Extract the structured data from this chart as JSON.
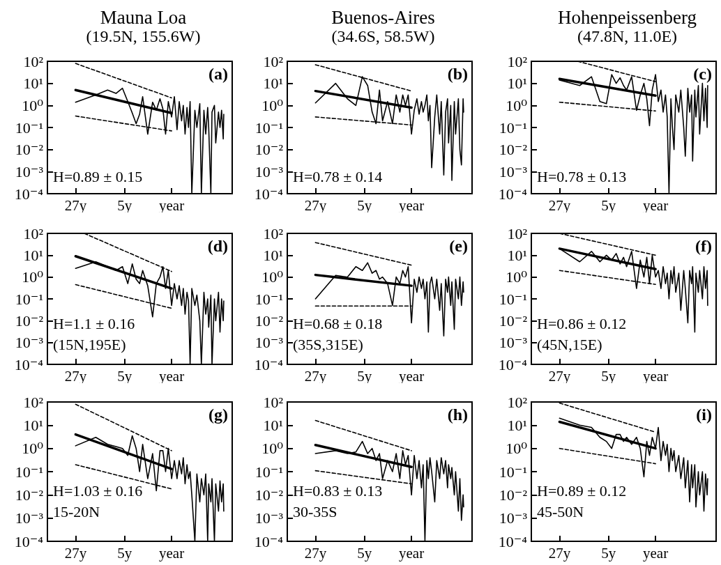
{
  "chart_data": [
    {
      "type": "line",
      "title": "Mauna Loa",
      "subtitle": "(19.5N, 155.6W)",
      "annotations": [
        "(a)",
        "H=0.89 ± 0.15"
      ],
      "log": "xy",
      "marker": "none",
      "xlim": [
        71,
        0.125
      ],
      "ylim": [
        0.0001,
        100
      ],
      "xticks": [
        {
          "value": 27,
          "label": "27y"
        },
        {
          "value": 5,
          "label": "5y"
        },
        {
          "value": 1,
          "label": "year"
        }
      ],
      "yticks": [
        {
          "value": 100,
          "label": "10²"
        },
        {
          "value": 10,
          "label": "10¹"
        },
        {
          "value": 1,
          "label": "10⁰"
        },
        {
          "value": 0.1,
          "label": "10⁻¹"
        },
        {
          "value": 0.01,
          "label": "10⁻²"
        },
        {
          "value": 0.001,
          "label": "10⁻³"
        },
        {
          "value": 0.0001,
          "label": "10⁻⁴"
        }
      ],
      "x": [
        27,
        13.5,
        9,
        6.75,
        5.4,
        4.5,
        3.86,
        3.38,
        3,
        2.7,
        2.27,
        1.92,
        1.69,
        1.49,
        1.35,
        1.23,
        1.12,
        1,
        0.91,
        0.83,
        0.77,
        0.71,
        0.67,
        0.63,
        0.59,
        0.56,
        0.53,
        0.5,
        0.45,
        0.42,
        0.38,
        0.36,
        0.33,
        0.31,
        0.29,
        0.28,
        0.26,
        0.25,
        0.23,
        0.22,
        0.2,
        0.19,
        0.18,
        0.17,
        0.167
      ],
      "series": [
        {
          "color": "#000000",
          "values": [
            1.4,
            3,
            5,
            3.5,
            6,
            1.5,
            0.45,
            0.15,
            0.4,
            2.5,
            0.05,
            1.4,
            0.6,
            2,
            0.7,
            0.05,
            1.5,
            0.3,
            2.5,
            0.08,
            1.5,
            0.2,
            1,
            0.05,
            0.8,
            0.1,
            1.5,
            0.0001,
            0.6,
            0.1,
            1.2,
            0.0001,
            0.6,
            0.05,
            0.8,
            0.1,
            0.0001,
            0.5,
            1,
            0.02,
            0.5,
            0.1,
            0.6,
            0.03,
            0.4
          ]
        },
        {
          "color": "#000000",
          "x": [
            27,
            1
          ],
          "values": [
            5,
            0.45
          ]
        },
        {
          "color": "#000000",
          "x": [
            27,
            1
          ],
          "values": [
            80,
            2.2
          ],
          "line_style": "dashed"
        },
        {
          "color": "#000000",
          "x": [
            27,
            1
          ],
          "values": [
            0.33,
            0.07
          ],
          "line_style": "dashed"
        }
      ]
    },
    {
      "type": "line",
      "title": "Buenos-Aires",
      "subtitle": "(34.6S, 58.5W)",
      "annotations": [
        "(b)",
        "H=0.78 ± 0.14"
      ],
      "log": "xy",
      "marker": "none",
      "xlim": [
        71,
        0.125
      ],
      "ylim": [
        0.0001,
        100
      ],
      "xticks": [
        {
          "value": 27,
          "label": "27y"
        },
        {
          "value": 5,
          "label": "5y"
        },
        {
          "value": 1,
          "label": "year"
        }
      ],
      "yticks": [
        {
          "value": 100,
          "label": "10²"
        },
        {
          "value": 10,
          "label": "10¹"
        },
        {
          "value": 1,
          "label": "10⁰"
        },
        {
          "value": 0.1,
          "label": "10⁻¹"
        },
        {
          "value": 0.01,
          "label": "10⁻²"
        },
        {
          "value": 0.001,
          "label": "10⁻³"
        },
        {
          "value": 0.0001,
          "label": "10⁻⁴"
        }
      ],
      "x": [
        27,
        13.5,
        9,
        6.75,
        5.4,
        4.5,
        3.86,
        3.38,
        3,
        2.7,
        2.27,
        1.92,
        1.69,
        1.49,
        1.35,
        1.23,
        1.12,
        1,
        0.91,
        0.83,
        0.77,
        0.71,
        0.67,
        0.63,
        0.59,
        0.56,
        0.53,
        0.5,
        0.45,
        0.42,
        0.38,
        0.36,
        0.33,
        0.31,
        0.29,
        0.28,
        0.26,
        0.25,
        0.23,
        0.22,
        0.2,
        0.19,
        0.18,
        0.17,
        0.167
      ],
      "series": [
        {
          "color": "#000000",
          "values": [
            1.3,
            10,
            2,
            1,
            20,
            8,
            0.5,
            0.15,
            5,
            0.2,
            1.5,
            0.15,
            3,
            0.5,
            3,
            1,
            3,
            0.05,
            0.6,
            2,
            0.4,
            1.5,
            0.5,
            1,
            3,
            0.2,
            1,
            0.0015,
            0.3,
            3,
            0.05,
            1.5,
            0.0007,
            0.5,
            2,
            0.02,
            1,
            0.0004,
            1.5,
            0.05,
            2,
            0.01,
            0.002,
            2,
            0.5
          ]
        },
        {
          "color": "#000000",
          "x": [
            27,
            1
          ],
          "values": [
            4.5,
            0.8
          ]
        },
        {
          "color": "#000000",
          "x": [
            27,
            1
          ],
          "values": [
            70,
            4.5
          ],
          "line_style": "dashed"
        },
        {
          "color": "#000000",
          "x": [
            27,
            1
          ],
          "values": [
            0.3,
            0.13
          ],
          "line_style": "dashed"
        }
      ]
    },
    {
      "type": "line",
      "title": "Hohenpeissenberg",
      "subtitle": "(47.8N, 11.0E)",
      "annotations": [
        "(c)",
        "H=0.78 ± 0.13"
      ],
      "log": "xy",
      "marker": "none",
      "xlim": [
        71,
        0.125
      ],
      "ylim": [
        0.0001,
        100
      ],
      "xticks": [
        {
          "value": 27,
          "label": "27y"
        },
        {
          "value": 5,
          "label": "5y"
        },
        {
          "value": 1,
          "label": "year"
        }
      ],
      "yticks": [
        {
          "value": 100,
          "label": "10²"
        },
        {
          "value": 10,
          "label": "10¹"
        },
        {
          "value": 1,
          "label": "10⁰"
        },
        {
          "value": 0.1,
          "label": "10⁻¹"
        },
        {
          "value": 0.01,
          "label": "10⁻²"
        },
        {
          "value": 0.001,
          "label": "10⁻³"
        },
        {
          "value": 0.0001,
          "label": "10⁻⁴"
        }
      ],
      "x": [
        27,
        13.5,
        9,
        6.75,
        5.4,
        4.5,
        3.86,
        3.38,
        3,
        2.7,
        2.27,
        1.92,
        1.69,
        1.49,
        1.35,
        1.23,
        1.12,
        1,
        0.91,
        0.83,
        0.77,
        0.71,
        0.67,
        0.63,
        0.59,
        0.56,
        0.53,
        0.5,
        0.45,
        0.42,
        0.38,
        0.36,
        0.33,
        0.31,
        0.29,
        0.28,
        0.26,
        0.25,
        0.23,
        0.22,
        0.2,
        0.19,
        0.18,
        0.17,
        0.167
      ],
      "series": [
        {
          "color": "#000000",
          "values": [
            14,
            8,
            20,
            1.5,
            1.2,
            25,
            10,
            18,
            8,
            5,
            20,
            0.6,
            3,
            10,
            2,
            0.12,
            5,
            25,
            1.5,
            5,
            0.5,
            3,
            0.3,
            0.0001,
            2,
            0.1,
            0.01,
            3,
            0.5,
            5,
            0.1,
            0.005,
            6,
            0.5,
            3,
            0.003,
            5,
            0.3,
            8,
            0.05,
            10,
            0.2,
            6,
            0.1,
            8
          ]
        },
        {
          "color": "#000000",
          "x": [
            27,
            1
          ],
          "values": [
            16,
            2.8
          ]
        },
        {
          "color": "#000000",
          "x": [
            14.5,
            1
          ],
          "values": [
            100,
            12
          ],
          "line_style": "dashed"
        },
        {
          "color": "#000000",
          "x": [
            27,
            1
          ],
          "values": [
            1.4,
            0.56
          ],
          "line_style": "dashed"
        }
      ]
    },
    {
      "type": "line",
      "annotations": [
        "(d)",
        "H=1.1 ± 0.16",
        "(15N,195E)"
      ],
      "log": "xy",
      "marker": "none",
      "xlim": [
        71,
        0.125
      ],
      "ylim": [
        0.0001,
        100
      ],
      "xticks": [
        {
          "value": 27,
          "label": "27y"
        },
        {
          "value": 5,
          "label": "5y"
        },
        {
          "value": 1,
          "label": "year"
        }
      ],
      "yticks": [
        {
          "value": 100,
          "label": "10²"
        },
        {
          "value": 10,
          "label": "10¹"
        },
        {
          "value": 1,
          "label": "10⁰"
        },
        {
          "value": 0.1,
          "label": "10⁻¹"
        },
        {
          "value": 0.01,
          "label": "10⁻²"
        },
        {
          "value": 0.001,
          "label": "10⁻³"
        },
        {
          "value": 0.0001,
          "label": "10⁻⁴"
        }
      ],
      "x": [
        27,
        13.5,
        9,
        6.75,
        5.4,
        4.5,
        3.86,
        3.38,
        3,
        2.7,
        2.27,
        1.92,
        1.69,
        1.49,
        1.35,
        1.23,
        1.12,
        1,
        0.91,
        0.83,
        0.77,
        0.71,
        0.67,
        0.63,
        0.59,
        0.56,
        0.53,
        0.5,
        0.45,
        0.42,
        0.38,
        0.36,
        0.33,
        0.31,
        0.29,
        0.28,
        0.26,
        0.25,
        0.23,
        0.22,
        0.2,
        0.19,
        0.18,
        0.17,
        0.167
      ],
      "series": [
        {
          "color": "#000000",
          "values": [
            2.5,
            5,
            3,
            2,
            3,
            0.5,
            4,
            0.8,
            0.5,
            2,
            0.4,
            0.015,
            0.5,
            1,
            3,
            0.3,
            2,
            0.05,
            0.5,
            0.1,
            0.4,
            0.05,
            0.3,
            0.02,
            0.2,
            0.08,
            0.0001,
            0.3,
            0.05,
            0.15,
            0.01,
            0.0001,
            0.2,
            0.02,
            0.1,
            0.005,
            0.15,
            0.0001,
            0.1,
            0.01,
            0.2,
            0.003,
            0.1,
            0.01,
            0.08
          ]
        },
        {
          "color": "#000000",
          "x": [
            27,
            1
          ],
          "values": [
            9,
            0.3
          ]
        },
        {
          "color": "#000000",
          "x": [
            20,
            1
          ],
          "values": [
            100,
            1.8
          ],
          "line_style": "dashed"
        },
        {
          "color": "#000000",
          "x": [
            27,
            1
          ],
          "values": [
            0.45,
            0.037
          ],
          "line_style": "dashed"
        }
      ]
    },
    {
      "type": "line",
      "annotations": [
        "(e)",
        "H=0.68 ± 0.18",
        "(35S,315E)"
      ],
      "log": "xy",
      "marker": "none",
      "xlim": [
        71,
        0.125
      ],
      "ylim": [
        0.0001,
        100
      ],
      "xticks": [
        {
          "value": 27,
          "label": "27y"
        },
        {
          "value": 5,
          "label": "5y"
        },
        {
          "value": 1,
          "label": "year"
        }
      ],
      "yticks": [
        {
          "value": 100,
          "label": "10²"
        },
        {
          "value": 10,
          "label": "10¹"
        },
        {
          "value": 1,
          "label": "10⁰"
        },
        {
          "value": 0.1,
          "label": "10⁻¹"
        },
        {
          "value": 0.01,
          "label": "10⁻²"
        },
        {
          "value": 0.001,
          "label": "10⁻³"
        },
        {
          "value": 0.0001,
          "label": "10⁻⁴"
        }
      ],
      "x": [
        27,
        13.5,
        9,
        6.75,
        5.4,
        4.5,
        3.86,
        3.38,
        3,
        2.7,
        2.27,
        1.92,
        1.69,
        1.49,
        1.35,
        1.23,
        1.12,
        1,
        0.91,
        0.83,
        0.77,
        0.71,
        0.67,
        0.63,
        0.59,
        0.56,
        0.53,
        0.5,
        0.45,
        0.42,
        0.38,
        0.36,
        0.33,
        0.31,
        0.29,
        0.28,
        0.26,
        0.25,
        0.23,
        0.22,
        0.2,
        0.19,
        0.18,
        0.17,
        0.167
      ],
      "series": [
        {
          "color": "#000000",
          "values": [
            0.1,
            1.2,
            1,
            3,
            2,
            4.5,
            1.5,
            2,
            0.8,
            1,
            0.5,
            0.05,
            1,
            0.5,
            2,
            1,
            3,
            0.008,
            0.8,
            0.2,
            1,
            0.3,
            0.8,
            0.1,
            0.6,
            0.003,
            0.5,
            1,
            0.1,
            0.8,
            0.03,
            0.5,
            0.002,
            0.8,
            0.2,
            1,
            0.05,
            0.6,
            0.004,
            0.8,
            0.1,
            1,
            0.05,
            0.6,
            0.2
          ]
        },
        {
          "color": "#000000",
          "x": [
            27,
            1
          ],
          "values": [
            1.25,
            0.4
          ]
        },
        {
          "color": "#000000",
          "x": [
            27,
            1
          ],
          "values": [
            38,
            3.5
          ],
          "line_style": "dashed"
        },
        {
          "color": "#000000",
          "x": [
            27,
            1
          ],
          "values": [
            0.047,
            0.047
          ],
          "line_style": "dashed"
        }
      ]
    },
    {
      "type": "line",
      "annotations": [
        "(f)",
        "H=0.86 ± 0.12",
        "(45N,15E)"
      ],
      "log": "xy",
      "marker": "none",
      "xlim": [
        71,
        0.125
      ],
      "ylim": [
        0.0001,
        100
      ],
      "xticks": [
        {
          "value": 27,
          "label": "27y"
        },
        {
          "value": 5,
          "label": "5y"
        },
        {
          "value": 1,
          "label": "year"
        }
      ],
      "yticks": [
        {
          "value": 100,
          "label": "10²"
        },
        {
          "value": 10,
          "label": "10¹"
        },
        {
          "value": 1,
          "label": "10⁰"
        },
        {
          "value": 0.1,
          "label": "10⁻¹"
        },
        {
          "value": 0.01,
          "label": "10⁻²"
        },
        {
          "value": 0.001,
          "label": "10⁻³"
        },
        {
          "value": 0.0001,
          "label": "10⁻⁴"
        }
      ],
      "x": [
        27,
        13.5,
        9,
        6.75,
        5.4,
        4.5,
        3.86,
        3.38,
        3,
        2.7,
        2.27,
        1.92,
        1.69,
        1.49,
        1.35,
        1.23,
        1.12,
        1,
        0.91,
        0.83,
        0.77,
        0.71,
        0.67,
        0.63,
        0.59,
        0.56,
        0.53,
        0.5,
        0.45,
        0.42,
        0.38,
        0.36,
        0.33,
        0.31,
        0.29,
        0.28,
        0.26,
        0.25,
        0.23,
        0.22,
        0.2,
        0.19,
        0.18,
        0.17,
        0.167
      ],
      "series": [
        {
          "color": "#000000",
          "values": [
            20,
            5,
            15,
            5,
            10,
            6,
            12,
            4,
            8,
            3,
            15,
            0.3,
            6,
            1,
            8,
            0.5,
            10,
            1,
            2,
            0.3,
            3,
            0.5,
            1.5,
            0.1,
            2,
            0.5,
            3,
            0.2,
            1.5,
            0.03,
            2,
            0.3,
            0.008,
            2,
            0.5,
            3,
            0.003,
            1.5,
            0.2,
            2,
            0.1,
            3,
            0.3,
            2,
            0.05
          ]
        },
        {
          "color": "#000000",
          "x": [
            27,
            1
          ],
          "values": [
            20,
            2.3
          ]
        },
        {
          "color": "#000000",
          "x": [
            27,
            1
          ],
          "values": [
            100,
            10
          ],
          "line_style": "dashed"
        },
        {
          "color": "#000000",
          "x": [
            27,
            1
          ],
          "values": [
            2,
            0.46
          ],
          "line_style": "dashed"
        }
      ]
    },
    {
      "type": "line",
      "annotations": [
        "(g)",
        "H=1.03 ± 0.16",
        "15-20N"
      ],
      "log": "xy",
      "marker": "none",
      "xlim": [
        71,
        0.125
      ],
      "ylim": [
        0.0001,
        100
      ],
      "xticks": [
        {
          "value": 27,
          "label": "27y"
        },
        {
          "value": 5,
          "label": "5y"
        },
        {
          "value": 1,
          "label": "year"
        }
      ],
      "yticks": [
        {
          "value": 100,
          "label": "10²"
        },
        {
          "value": 10,
          "label": "10¹"
        },
        {
          "value": 1,
          "label": "10⁰"
        },
        {
          "value": 0.1,
          "label": "10⁻¹"
        },
        {
          "value": 0.01,
          "label": "10⁻²"
        },
        {
          "value": 0.001,
          "label": "10⁻³"
        },
        {
          "value": 0.0001,
          "label": "10⁻⁴"
        }
      ],
      "x": [
        27,
        13.5,
        9,
        6.75,
        5.4,
        4.5,
        3.86,
        3.38,
        3,
        2.7,
        2.27,
        1.92,
        1.69,
        1.49,
        1.35,
        1.23,
        1.12,
        1,
        0.91,
        0.83,
        0.77,
        0.71,
        0.67,
        0.63,
        0.59,
        0.56,
        0.53,
        0.5,
        0.45,
        0.42,
        0.38,
        0.36,
        0.33,
        0.31,
        0.29,
        0.28,
        0.26,
        0.25,
        0.23,
        0.22,
        0.2,
        0.19,
        0.18,
        0.17,
        0.167
      ],
      "series": [
        {
          "color": "#000000",
          "values": [
            1.3,
            3,
            1.5,
            1.2,
            1,
            0.5,
            3.5,
            1,
            0.1,
            1.5,
            0.05,
            0.6,
            0.015,
            0.8,
            0.8,
            0.1,
            1,
            0.05,
            0.3,
            0.05,
            0.3,
            0.08,
            0.4,
            0.03,
            0.2,
            0.05,
            0.1,
            0.01,
            0.0001,
            0.08,
            0.005,
            0.05,
            0.01,
            0.08,
            0.0001,
            0.03,
            0.005,
            0.05,
            0.0001,
            0.03,
            0.002,
            0.04,
            0.005,
            0.03,
            0.002
          ]
        },
        {
          "color": "#000000",
          "x": [
            27,
            1
          ],
          "values": [
            4,
            0.13
          ]
        },
        {
          "color": "#000000",
          "x": [
            27,
            1
          ],
          "values": [
            80,
            0.8
          ],
          "line_style": "dashed"
        },
        {
          "color": "#000000",
          "x": [
            27,
            1
          ],
          "values": [
            0.2,
            0.018
          ],
          "line_style": "dashed"
        }
      ]
    },
    {
      "type": "line",
      "annotations": [
        "(h)",
        "H=0.83 ± 0.13",
        "30-35S"
      ],
      "log": "xy",
      "marker": "none",
      "xlim": [
        71,
        0.125
      ],
      "ylim": [
        0.0001,
        100
      ],
      "xticks": [
        {
          "value": 27,
          "label": "27y"
        },
        {
          "value": 5,
          "label": "5y"
        },
        {
          "value": 1,
          "label": "year"
        }
      ],
      "yticks": [
        {
          "value": 100,
          "label": "10²"
        },
        {
          "value": 10,
          "label": "10¹"
        },
        {
          "value": 1,
          "label": "10⁰"
        },
        {
          "value": 0.1,
          "label": "10⁻¹"
        },
        {
          "value": 0.01,
          "label": "10⁻²"
        },
        {
          "value": 0.001,
          "label": "10⁻³"
        },
        {
          "value": 0.0001,
          "label": "10⁻⁴"
        }
      ],
      "x": [
        27,
        13.5,
        9,
        6.75,
        5.4,
        4.5,
        3.86,
        3.38,
        3,
        2.7,
        2.27,
        1.92,
        1.69,
        1.49,
        1.35,
        1.23,
        1.12,
        1,
        0.91,
        0.83,
        0.77,
        0.71,
        0.67,
        0.63,
        0.59,
        0.56,
        0.53,
        0.5,
        0.45,
        0.42,
        0.38,
        0.36,
        0.33,
        0.31,
        0.29,
        0.28,
        0.26,
        0.25,
        0.23,
        0.22,
        0.2,
        0.19,
        0.18,
        0.17,
        0.167
      ],
      "series": [
        {
          "color": "#000000",
          "values": [
            0.6,
            0.8,
            0.6,
            0.7,
            2,
            0.6,
            1,
            0.3,
            0.6,
            0.05,
            0.3,
            0.1,
            0.6,
            0.05,
            0.8,
            0.2,
            0.5,
            0.01,
            0.5,
            0.05,
            0.3,
            0.02,
            0.2,
            0.0001,
            0.3,
            0.05,
            0.4,
            0.1,
            0.005,
            0.3,
            0.05,
            0.4,
            0.08,
            0.3,
            0.02,
            0.2,
            0.05,
            0.15,
            0.01,
            0.1,
            0.002,
            0.05,
            0.0008,
            0.01,
            0.003
          ]
        },
        {
          "color": "#000000",
          "x": [
            27,
            1
          ],
          "values": [
            1.4,
            0.16
          ]
        },
        {
          "color": "#000000",
          "x": [
            27,
            1
          ],
          "values": [
            16,
            0.8
          ],
          "line_style": "dashed"
        },
        {
          "color": "#000000",
          "x": [
            27,
            1
          ],
          "values": [
            0.11,
            0.03
          ],
          "line_style": "dashed"
        }
      ]
    },
    {
      "type": "line",
      "annotations": [
        "(i)",
        "H=0.89 ± 0.12",
        "45-50N"
      ],
      "log": "xy",
      "marker": "none",
      "xlim": [
        71,
        0.125
      ],
      "ylim": [
        0.0001,
        100
      ],
      "xticks": [
        {
          "value": 27,
          "label": "27y"
        },
        {
          "value": 5,
          "label": "5y"
        },
        {
          "value": 1,
          "label": "year"
        }
      ],
      "yticks": [
        {
          "value": 100,
          "label": "10²"
        },
        {
          "value": 10,
          "label": "10¹"
        },
        {
          "value": 1,
          "label": "10⁰"
        },
        {
          "value": 0.1,
          "label": "10⁻¹"
        },
        {
          "value": 0.01,
          "label": "10⁻²"
        },
        {
          "value": 0.001,
          "label": "10⁻³"
        },
        {
          "value": 0.0001,
          "label": "10⁻⁴"
        }
      ],
      "x": [
        27,
        13.5,
        9,
        6.75,
        5.4,
        4.5,
        3.86,
        3.38,
        3,
        2.7,
        2.27,
        1.92,
        1.69,
        1.49,
        1.35,
        1.23,
        1.12,
        1,
        0.91,
        0.83,
        0.77,
        0.71,
        0.67,
        0.63,
        0.59,
        0.56,
        0.53,
        0.5,
        0.45,
        0.42,
        0.38,
        0.36,
        0.33,
        0.31,
        0.29,
        0.28,
        0.26,
        0.25,
        0.23,
        0.22,
        0.2,
        0.19,
        0.18,
        0.17,
        0.167
      ],
      "series": [
        {
          "color": "#000000",
          "values": [
            20,
            10,
            8,
            3,
            2,
            1,
            4,
            4,
            2,
            3,
            1.5,
            3,
            1,
            0.06,
            2,
            0.5,
            3,
            1,
            8,
            0.3,
            2,
            0.5,
            1.5,
            0.1,
            1,
            0.3,
            0.8,
            0.1,
            0.5,
            0.05,
            0.4,
            0.02,
            0.3,
            0.005,
            0.2,
            0.02,
            0.2,
            0.003,
            0.1,
            0.01,
            0.1,
            0.002,
            0.08,
            0.01,
            0.05
          ]
        },
        {
          "color": "#000000",
          "x": [
            27,
            1
          ],
          "values": [
            14,
            1
          ]
        },
        {
          "color": "#000000",
          "x": [
            27,
            1
          ],
          "values": [
            90,
            5
          ],
          "line_style": "dashed"
        },
        {
          "color": "#000000",
          "x": [
            27,
            1
          ],
          "values": [
            1,
            0.22
          ],
          "line_style": "dashed"
        }
      ]
    }
  ]
}
